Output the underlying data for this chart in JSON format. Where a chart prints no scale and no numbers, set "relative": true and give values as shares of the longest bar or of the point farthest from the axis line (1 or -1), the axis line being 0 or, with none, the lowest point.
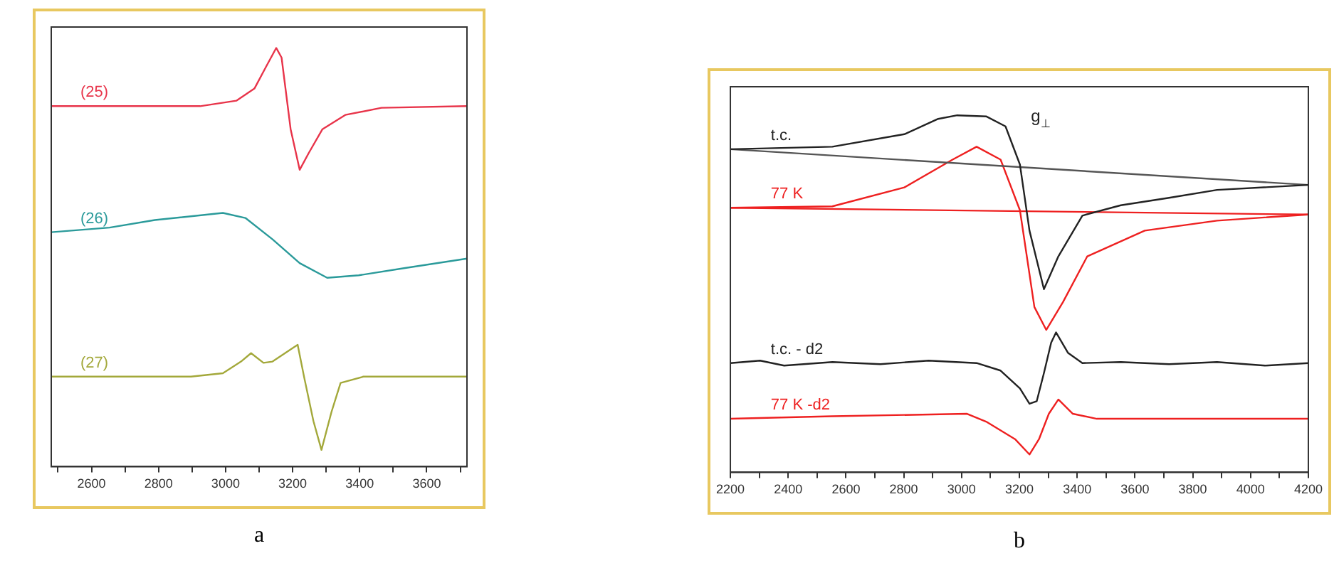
{
  "chart_data": [
    {
      "type": "line",
      "title": "a",
      "relative": true,
      "tick_labels": "x",
      "xlim": [
        2480,
        3720
      ],
      "xticks": [
        {
          "value": 2500,
          "label": null
        },
        2600,
        {
          "value": 2700,
          "label": null
        },
        2800,
        {
          "value": 2900,
          "label": null
        },
        3000,
        {
          "value": 3100,
          "label": null
        },
        3200,
        {
          "value": 3300,
          "label": null
        },
        3400,
        {
          "value": 3500,
          "label": null
        },
        3600,
        {
          "value": 3700,
          "label": null
        }
      ],
      "series": [
        {
          "name": "(25)",
          "color": "#e8344a",
          "x": [
            2480,
            2924,
            3032,
            3086,
            3120,
            3151,
            3167,
            3194,
            3221,
            3248,
            3289,
            3357,
            3465,
            3720
          ],
          "values": [
            0.861,
            0.861,
            0.874,
            0.903,
            0.954,
            1.0,
            0.977,
            0.806,
            0.709,
            0.749,
            0.806,
            0.84,
            0.857,
            0.861
          ]
        },
        {
          "name": "(26)",
          "color": "#2a9a9a",
          "x": [
            2480,
            2654,
            2789,
            2992,
            3059,
            3140,
            3221,
            3303,
            3397,
            3532,
            3720
          ],
          "values": [
            0.56,
            0.571,
            0.589,
            0.606,
            0.594,
            0.543,
            0.486,
            0.451,
            0.457,
            0.474,
            0.497
          ]
        },
        {
          "name": "(27)",
          "color": "#a3a83a",
          "x": [
            2480,
            2897,
            2992,
            3046,
            3076,
            3113,
            3140,
            3194,
            3215,
            3235,
            3262,
            3286,
            3316,
            3343,
            3411,
            3720
          ],
          "values": [
            0.215,
            0.215,
            0.223,
            0.251,
            0.271,
            0.248,
            0.251,
            0.28,
            0.291,
            0.211,
            0.109,
            0.04,
            0.131,
            0.2,
            0.215,
            0.215
          ]
        }
      ]
    },
    {
      "type": "line",
      "title": "b",
      "relative": true,
      "tick_labels": "x",
      "xlim": [
        2200,
        4200
      ],
      "xticks": [
        2200,
        {
          "value": 2300,
          "label": null
        },
        2400,
        {
          "value": 2500,
          "label": null
        },
        2600,
        {
          "value": 2700,
          "label": null
        },
        2800,
        {
          "value": 2900,
          "label": null
        },
        3000,
        {
          "value": 3100,
          "label": null
        },
        3200,
        {
          "value": 3300,
          "label": null
        },
        3400,
        {
          "value": 3500,
          "label": null
        },
        3600,
        {
          "value": 3700,
          "label": null
        },
        3800,
        {
          "value": 3900,
          "label": null
        },
        4000,
        {
          "value": 4100,
          "label": null
        },
        4200
      ],
      "annotations": [
        "g$_{⊥}$"
      ],
      "series": [
        {
          "name": "t.c.",
          "color": "#222222",
          "x": [
            2200,
            2553,
            2802,
            2919,
            2985,
            3085,
            3152,
            3202,
            3235,
            3285,
            3335,
            3418,
            3551,
            3718,
            3884,
            4200
          ],
          "values": [
            0.905,
            0.912,
            0.947,
            0.99,
            1.0,
            0.997,
            0.969,
            0.862,
            0.677,
            0.513,
            0.605,
            0.719,
            0.748,
            0.769,
            0.791,
            0.805
          ]
        },
        {
          "color": "#555555",
          "x": [
            2200,
            4200
          ],
          "values": [
            0.905,
            0.805
          ]
        },
        {
          "name": "77 K",
          "color": "#ee2020",
          "x": [
            2200,
            2553,
            2802,
            2969,
            3052,
            3135,
            3202,
            3252,
            3293,
            3351,
            3435,
            3634,
            3884,
            4200
          ],
          "values": [
            0.741,
            0.745,
            0.798,
            0.876,
            0.912,
            0.876,
            0.734,
            0.463,
            0.399,
            0.477,
            0.605,
            0.677,
            0.705,
            0.722
          ]
        },
        {
          "color": "#ee2020",
          "x": [
            2200,
            4200
          ],
          "values": [
            0.741,
            0.722
          ]
        },
        {
          "name": "t.c. - d2",
          "color": "#222222",
          "x": [
            2200,
            2303,
            2386,
            2553,
            2719,
            2886,
            3052,
            3135,
            3202,
            3235,
            3260,
            3285,
            3310,
            3327,
            3368,
            3418,
            3551,
            3718,
            3884,
            4050,
            4200
          ],
          "values": [
            0.306,
            0.313,
            0.299,
            0.309,
            0.303,
            0.313,
            0.306,
            0.285,
            0.235,
            0.192,
            0.199,
            0.278,
            0.363,
            0.392,
            0.335,
            0.306,
            0.309,
            0.303,
            0.309,
            0.299,
            0.306
          ]
        },
        {
          "name": "77 K -d2",
          "color": "#ee2020",
          "x": [
            2200,
            2553,
            3019,
            3085,
            3185,
            3235,
            3268,
            3302,
            3335,
            3385,
            3468,
            4200
          ],
          "values": [
            0.15,
            0.157,
            0.164,
            0.142,
            0.093,
            0.05,
            0.093,
            0.164,
            0.204,
            0.164,
            0.15,
            0.15
          ]
        }
      ]
    }
  ]
}
